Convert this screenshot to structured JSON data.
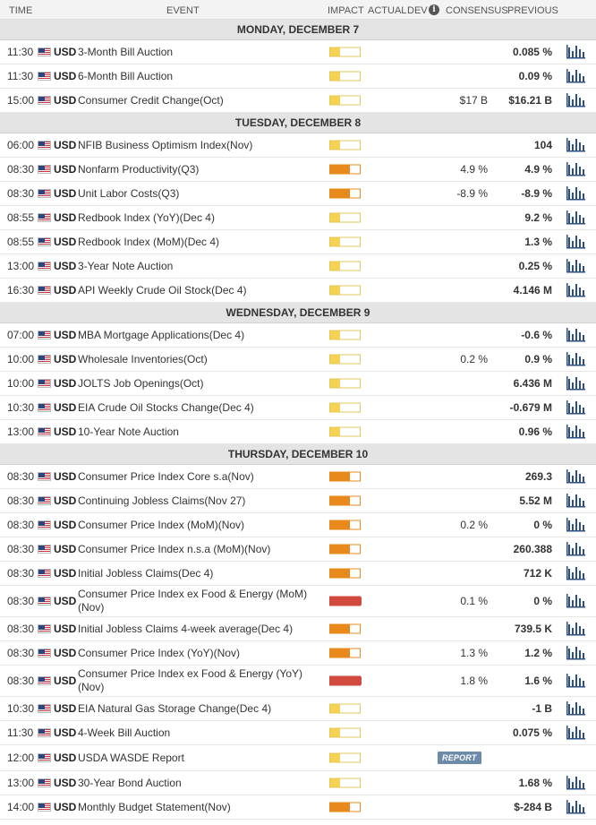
{
  "header": {
    "time": "TIME",
    "event": "EVENT",
    "impact": "IMPACT",
    "actual": "ACTUAL",
    "dev": "DEV",
    "info": "i",
    "consensus": "CONSENSUS",
    "previous": "PREVIOUS"
  },
  "days": [
    {
      "date": "MONDAY, DECEMBER 7",
      "events": [
        {
          "time": "11:30",
          "currency": "USD",
          "name": "3-Month Bill Auction",
          "impact": "low",
          "consensus": "",
          "previous": "0.085 %",
          "chart": true
        },
        {
          "time": "11:30",
          "currency": "USD",
          "name": "6-Month Bill Auction",
          "impact": "low",
          "consensus": "",
          "previous": "0.09 %",
          "chart": true
        },
        {
          "time": "15:00",
          "currency": "USD",
          "name": "Consumer Credit Change(Oct)",
          "impact": "low",
          "consensus": "$17 B",
          "previous": "$16.21 B",
          "chart": true
        }
      ]
    },
    {
      "date": "TUESDAY, DECEMBER 8",
      "events": [
        {
          "time": "06:00",
          "currency": "USD",
          "name": "NFIB Business Optimism Index(Nov)",
          "impact": "low",
          "consensus": "",
          "previous": "104",
          "chart": true
        },
        {
          "time": "08:30",
          "currency": "USD",
          "name": "Nonfarm Productivity(Q3)",
          "impact": "med",
          "consensus": "4.9 %",
          "previous": "4.9 %",
          "chart": true
        },
        {
          "time": "08:30",
          "currency": "USD",
          "name": "Unit Labor Costs(Q3)",
          "impact": "med",
          "consensus": "-8.9 %",
          "previous": "-8.9 %",
          "chart": true
        },
        {
          "time": "08:55",
          "currency": "USD",
          "name": "Redbook Index (YoY)(Dec 4)",
          "impact": "low",
          "consensus": "",
          "previous": "9.2 %",
          "chart": true
        },
        {
          "time": "08:55",
          "currency": "USD",
          "name": "Redbook Index (MoM)(Dec 4)",
          "impact": "low",
          "consensus": "",
          "previous": "1.3 %",
          "chart": true
        },
        {
          "time": "13:00",
          "currency": "USD",
          "name": "3-Year Note Auction",
          "impact": "low",
          "consensus": "",
          "previous": "0.25 %",
          "chart": true
        },
        {
          "time": "16:30",
          "currency": "USD",
          "name": "API Weekly Crude Oil Stock(Dec 4)",
          "impact": "low",
          "consensus": "",
          "previous": "4.146 M",
          "chart": true
        }
      ]
    },
    {
      "date": "WEDNESDAY, DECEMBER 9",
      "events": [
        {
          "time": "07:00",
          "currency": "USD",
          "name": "MBA Mortgage Applications(Dec 4)",
          "impact": "low",
          "consensus": "",
          "previous": "-0.6 %",
          "chart": true
        },
        {
          "time": "10:00",
          "currency": "USD",
          "name": "Wholesale Inventories(Oct)",
          "impact": "low",
          "consensus": "0.2 %",
          "previous": "0.9 %",
          "chart": true
        },
        {
          "time": "10:00",
          "currency": "USD",
          "name": "JOLTS Job Openings(Oct)",
          "impact": "low",
          "consensus": "",
          "previous": "6.436 M",
          "chart": true
        },
        {
          "time": "10:30",
          "currency": "USD",
          "name": "EIA Crude Oil Stocks Change(Dec 4)",
          "impact": "low",
          "consensus": "",
          "previous": "-0.679 M",
          "chart": true
        },
        {
          "time": "13:00",
          "currency": "USD",
          "name": "10-Year Note Auction",
          "impact": "low",
          "consensus": "",
          "previous": "0.96 %",
          "chart": true
        }
      ]
    },
    {
      "date": "THURSDAY, DECEMBER 10",
      "events": [
        {
          "time": "08:30",
          "currency": "USD",
          "name": "Consumer Price Index Core s.a(Nov)",
          "impact": "med",
          "consensus": "",
          "previous": "269.3",
          "chart": true
        },
        {
          "time": "08:30",
          "currency": "USD",
          "name": "Continuing Jobless Claims(Nov 27)",
          "impact": "med",
          "consensus": "",
          "previous": "5.52 M",
          "chart": true
        },
        {
          "time": "08:30",
          "currency": "USD",
          "name": "Consumer Price Index (MoM)(Nov)",
          "impact": "med",
          "consensus": "0.2 %",
          "previous": "0 %",
          "chart": true
        },
        {
          "time": "08:30",
          "currency": "USD",
          "name": "Consumer Price Index n.s.a (MoM)(Nov)",
          "impact": "med",
          "consensus": "",
          "previous": "260.388",
          "chart": true
        },
        {
          "time": "08:30",
          "currency": "USD",
          "name": "Initial Jobless Claims(Dec 4)",
          "impact": "med",
          "consensus": "",
          "previous": "712 K",
          "chart": true
        },
        {
          "time": "08:30",
          "currency": "USD",
          "name": "Consumer Price Index ex Food & Energy (MoM) (Nov)",
          "impact": "high",
          "consensus": "0.1 %",
          "previous": "0 %",
          "chart": true,
          "tall": true
        },
        {
          "time": "08:30",
          "currency": "USD",
          "name": "Initial Jobless Claims 4-week average(Dec 4)",
          "impact": "med",
          "consensus": "",
          "previous": "739.5 K",
          "chart": true
        },
        {
          "time": "08:30",
          "currency": "USD",
          "name": "Consumer Price Index (YoY)(Nov)",
          "impact": "med",
          "consensus": "1.3 %",
          "previous": "1.2 %",
          "chart": true
        },
        {
          "time": "08:30",
          "currency": "USD",
          "name": "Consumer Price Index ex Food & Energy (YoY) (Nov)",
          "impact": "high",
          "consensus": "1.8 %",
          "previous": "1.6 %",
          "chart": true,
          "tall": true
        },
        {
          "time": "10:30",
          "currency": "USD",
          "name": "EIA Natural Gas Storage Change(Dec 4)",
          "impact": "low",
          "consensus": "",
          "previous": "-1 B",
          "chart": true
        },
        {
          "time": "11:30",
          "currency": "USD",
          "name": "4-Week Bill Auction",
          "impact": "low",
          "consensus": "",
          "previous": "0.075 %",
          "chart": true
        },
        {
          "time": "12:00",
          "currency": "USD",
          "name": "USDA WASDE Report",
          "impact": "low",
          "consensus": "",
          "previous": "",
          "chart": false,
          "report": "REPORT",
          "mid": true
        },
        {
          "time": "13:00",
          "currency": "USD",
          "name": "30-Year Bond Auction",
          "impact": "low",
          "consensus": "",
          "previous": "1.68 %",
          "chart": true
        },
        {
          "time": "14:00",
          "currency": "USD",
          "name": "Monthly Budget Statement(Nov)",
          "impact": "med",
          "consensus": "",
          "previous": "$-284 B",
          "chart": true
        }
      ]
    }
  ],
  "colors": {
    "impact_low": "#f5d251",
    "impact_med": "#e9881b",
    "impact_high": "#d24a3d",
    "chart_icon": "#2c4f86",
    "report_badge": "#6b8ba8"
  }
}
